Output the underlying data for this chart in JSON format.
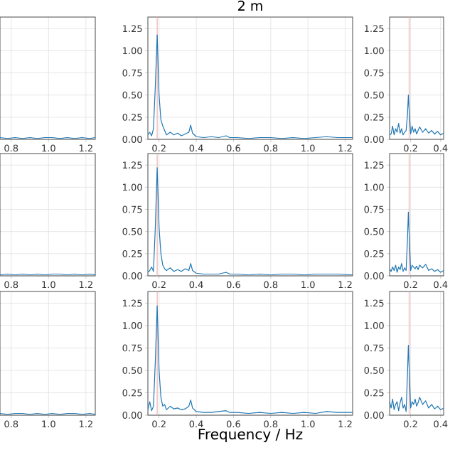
{
  "chart_data": [
    {
      "type": "line",
      "x": [
        0.74,
        0.78,
        0.82,
        0.86,
        0.9,
        0.94,
        0.98,
        1.02,
        1.06,
        1.1,
        1.14,
        1.18,
        1.22,
        1.25
      ],
      "values": [
        0.02,
        0.01,
        0.02,
        0.01,
        0.02,
        0.01,
        0.02,
        0.02,
        0.01,
        0.02,
        0.01,
        0.02,
        0.01,
        0.02
      ],
      "color": "#1f77b4",
      "xlim": [
        0.74,
        1.25
      ],
      "ylim": [
        0,
        1.38
      ],
      "xticks": [
        {
          "value": 0.8,
          "label": "0.8"
        },
        {
          "value": 1.0,
          "label": "1.0"
        },
        {
          "value": 1.2,
          "label": "1.2"
        }
      ],
      "yticks": [
        0,
        0.25,
        0.5,
        0.75,
        1.0,
        1.25
      ],
      "grid": true,
      "tick_labels": "x"
    },
    {
      "type": "line",
      "title": "2 m",
      "x": [
        0.14,
        0.15,
        0.16,
        0.17,
        0.18,
        0.19,
        0.2,
        0.21,
        0.22,
        0.23,
        0.24,
        0.26,
        0.28,
        0.3,
        0.32,
        0.34,
        0.36,
        0.37,
        0.38,
        0.4,
        0.44,
        0.48,
        0.52,
        0.56,
        0.58,
        0.62,
        0.68,
        0.74,
        0.8,
        0.86,
        0.92,
        0.98,
        1.04,
        1.1,
        1.16,
        1.24
      ],
      "values": [
        0.05,
        0.08,
        0.04,
        0.12,
        0.6,
        1.18,
        0.5,
        0.22,
        0.15,
        0.1,
        0.05,
        0.08,
        0.05,
        0.07,
        0.04,
        0.06,
        0.08,
        0.16,
        0.07,
        0.03,
        0.02,
        0.03,
        0.02,
        0.04,
        0.02,
        0.02,
        0.01,
        0.02,
        0.02,
        0.01,
        0.02,
        0.01,
        0.02,
        0.03,
        0.02,
        0.02
      ],
      "color": "#1f77b4",
      "xlim": [
        0.14,
        1.24
      ],
      "ylim": [
        0,
        1.38
      ],
      "xticks": [
        {
          "value": 0.2,
          "label": "0.2"
        },
        {
          "value": 0.4,
          "label": "0.4"
        },
        {
          "value": 0.6,
          "label": "0.6"
        },
        {
          "value": 0.8,
          "label": "0.8"
        },
        {
          "value": 1.0,
          "label": "1.0"
        },
        {
          "value": 1.2,
          "label": "1.2"
        }
      ],
      "yticks": [
        {
          "value": 0,
          "label": "0.00"
        },
        {
          "value": 0.25,
          "label": "0.25"
        },
        {
          "value": 0.5,
          "label": "0.50"
        },
        {
          "value": 0.75,
          "label": "0.75"
        },
        {
          "value": 1.0,
          "label": "1.00"
        },
        {
          "value": 1.25,
          "label": "1.25"
        }
      ],
      "grid": true,
      "ref_lines": [
        {
          "axis": "x",
          "value": 0.19,
          "color": "#f0b0b0"
        }
      ]
    },
    {
      "type": "line",
      "x": [
        0.06,
        0.07,
        0.08,
        0.09,
        0.1,
        0.11,
        0.12,
        0.13,
        0.14,
        0.15,
        0.16,
        0.17,
        0.18,
        0.185,
        0.19,
        0.2,
        0.21,
        0.22,
        0.23,
        0.24,
        0.25,
        0.26,
        0.28,
        0.3,
        0.32,
        0.34,
        0.36,
        0.38,
        0.4,
        0.42
      ],
      "values": [
        0.05,
        0.06,
        0.15,
        0.05,
        0.12,
        0.08,
        0.18,
        0.07,
        0.12,
        0.05,
        0.08,
        0.1,
        0.3,
        0.5,
        0.35,
        0.06,
        0.15,
        0.08,
        0.12,
        0.06,
        0.1,
        0.14,
        0.08,
        0.12,
        0.07,
        0.1,
        0.06,
        0.09,
        0.05,
        0.07
      ],
      "color": "#1f77b4",
      "xlim": [
        0.06,
        0.42
      ],
      "ylim": [
        0,
        1.38
      ],
      "xticks": [
        {
          "value": 0.2,
          "label": "0.2"
        },
        {
          "value": 0.4,
          "label": "0.4"
        }
      ],
      "yticks": [
        {
          "value": 0,
          "label": "0.00"
        },
        {
          "value": 0.25,
          "label": "0.25"
        },
        {
          "value": 0.5,
          "label": "0.50"
        },
        {
          "value": 0.75,
          "label": "0.75"
        },
        {
          "value": 1.0,
          "label": "1.00"
        },
        {
          "value": 1.25,
          "label": "1.25"
        }
      ],
      "grid": true,
      "ref_lines": [
        {
          "axis": "x",
          "value": 0.19,
          "color": "#f0b0b0"
        }
      ]
    },
    {
      "type": "line",
      "x": [
        0.74,
        0.78,
        0.82,
        0.86,
        0.9,
        0.94,
        0.98,
        1.02,
        1.06,
        1.1,
        1.14,
        1.18,
        1.22,
        1.25
      ],
      "values": [
        0.01,
        0.02,
        0.01,
        0.02,
        0.01,
        0.02,
        0.01,
        0.02,
        0.02,
        0.01,
        0.02,
        0.01,
        0.02,
        0.01
      ],
      "color": "#1f77b4",
      "xlim": [
        0.74,
        1.25
      ],
      "ylim": [
        0,
        1.38
      ],
      "xticks": [
        {
          "value": 0.8,
          "label": "0.8"
        },
        {
          "value": 1.0,
          "label": "1.0"
        },
        {
          "value": 1.2,
          "label": "1.2"
        }
      ],
      "yticks": [
        0,
        0.25,
        0.5,
        0.75,
        1.0,
        1.25
      ],
      "grid": true,
      "tick_labels": "x"
    },
    {
      "type": "line",
      "x": [
        0.14,
        0.15,
        0.16,
        0.17,
        0.18,
        0.19,
        0.2,
        0.21,
        0.22,
        0.23,
        0.24,
        0.26,
        0.28,
        0.3,
        0.32,
        0.34,
        0.36,
        0.37,
        0.38,
        0.4,
        0.44,
        0.48,
        0.52,
        0.56,
        0.58,
        0.62,
        0.68,
        0.74,
        0.8,
        0.86,
        0.92,
        0.98,
        1.04,
        1.1,
        1.16,
        1.24
      ],
      "values": [
        0.04,
        0.06,
        0.1,
        0.05,
        0.55,
        1.22,
        0.55,
        0.25,
        0.12,
        0.08,
        0.06,
        0.09,
        0.05,
        0.07,
        0.05,
        0.08,
        0.06,
        0.14,
        0.06,
        0.03,
        0.02,
        0.02,
        0.02,
        0.04,
        0.02,
        0.02,
        0.01,
        0.02,
        0.01,
        0.02,
        0.02,
        0.01,
        0.02,
        0.02,
        0.02,
        0.01
      ],
      "color": "#1f77b4",
      "xlim": [
        0.14,
        1.24
      ],
      "ylim": [
        0,
        1.38
      ],
      "xticks": [
        {
          "value": 0.2,
          "label": "0.2"
        },
        {
          "value": 0.4,
          "label": "0.4"
        },
        {
          "value": 0.6,
          "label": "0.6"
        },
        {
          "value": 0.8,
          "label": "0.8"
        },
        {
          "value": 1.0,
          "label": "1.0"
        },
        {
          "value": 1.2,
          "label": "1.2"
        }
      ],
      "yticks": [
        {
          "value": 0,
          "label": "0.00"
        },
        {
          "value": 0.25,
          "label": "0.25"
        },
        {
          "value": 0.5,
          "label": "0.50"
        },
        {
          "value": 0.75,
          "label": "0.75"
        },
        {
          "value": 1.0,
          "label": "1.00"
        },
        {
          "value": 1.25,
          "label": "1.25"
        }
      ],
      "grid": true,
      "ref_lines": [
        {
          "axis": "x",
          "value": 0.19,
          "color": "#f0b0b0"
        }
      ]
    },
    {
      "type": "line",
      "x": [
        0.06,
        0.07,
        0.08,
        0.09,
        0.1,
        0.11,
        0.12,
        0.13,
        0.14,
        0.15,
        0.16,
        0.17,
        0.18,
        0.185,
        0.19,
        0.2,
        0.21,
        0.22,
        0.23,
        0.24,
        0.25,
        0.26,
        0.28,
        0.3,
        0.32,
        0.34,
        0.36,
        0.38,
        0.4,
        0.42
      ],
      "values": [
        0.08,
        0.05,
        0.1,
        0.06,
        0.12,
        0.04,
        0.1,
        0.07,
        0.14,
        0.05,
        0.09,
        0.06,
        0.45,
        0.72,
        0.5,
        0.06,
        0.12,
        0.1,
        0.08,
        0.11,
        0.07,
        0.12,
        0.09,
        0.13,
        0.06,
        0.08,
        0.05,
        0.07,
        0.04,
        0.06
      ],
      "color": "#1f77b4",
      "xlim": [
        0.06,
        0.42
      ],
      "ylim": [
        0,
        1.38
      ],
      "xticks": [
        {
          "value": 0.2,
          "label": "0.2"
        },
        {
          "value": 0.4,
          "label": "0.4"
        }
      ],
      "yticks": [
        {
          "value": 0,
          "label": "0.00"
        },
        {
          "value": 0.25,
          "label": "0.25"
        },
        {
          "value": 0.5,
          "label": "0.50"
        },
        {
          "value": 0.75,
          "label": "0.75"
        },
        {
          "value": 1.0,
          "label": "1.00"
        },
        {
          "value": 1.25,
          "label": "1.25"
        }
      ],
      "grid": true,
      "ref_lines": [
        {
          "axis": "x",
          "value": 0.19,
          "color": "#f0b0b0"
        }
      ]
    },
    {
      "type": "line",
      "x": [
        0.74,
        0.78,
        0.82,
        0.86,
        0.9,
        0.94,
        0.98,
        1.02,
        1.06,
        1.1,
        1.14,
        1.18,
        1.22,
        1.25
      ],
      "values": [
        0.02,
        0.01,
        0.02,
        0.02,
        0.01,
        0.02,
        0.01,
        0.02,
        0.01,
        0.02,
        0.02,
        0.01,
        0.02,
        0.01
      ],
      "color": "#1f77b4",
      "xlim": [
        0.74,
        1.25
      ],
      "ylim": [
        0,
        1.38
      ],
      "xticks": [
        {
          "value": 0.8,
          "label": "0.8"
        },
        {
          "value": 1.0,
          "label": "1.0"
        },
        {
          "value": 1.2,
          "label": "1.2"
        }
      ],
      "yticks": [
        0,
        0.25,
        0.5,
        0.75,
        1.0,
        1.25
      ],
      "grid": true,
      "tick_labels": "x"
    },
    {
      "type": "line",
      "xlabel": "Frequency / Hz",
      "x": [
        0.14,
        0.15,
        0.16,
        0.17,
        0.18,
        0.19,
        0.2,
        0.21,
        0.22,
        0.23,
        0.24,
        0.26,
        0.28,
        0.3,
        0.32,
        0.34,
        0.36,
        0.37,
        0.38,
        0.4,
        0.44,
        0.48,
        0.52,
        0.56,
        0.58,
        0.62,
        0.68,
        0.74,
        0.8,
        0.86,
        0.92,
        0.98,
        1.04,
        1.1,
        1.16,
        1.24
      ],
      "values": [
        0.06,
        0.15,
        0.05,
        0.1,
        0.6,
        1.22,
        0.5,
        0.2,
        0.1,
        0.12,
        0.06,
        0.1,
        0.07,
        0.08,
        0.06,
        0.07,
        0.1,
        0.17,
        0.08,
        0.04,
        0.03,
        0.03,
        0.04,
        0.05,
        0.03,
        0.03,
        0.02,
        0.03,
        0.02,
        0.03,
        0.02,
        0.03,
        0.02,
        0.04,
        0.03,
        0.03
      ],
      "color": "#1f77b4",
      "xlim": [
        0.14,
        1.24
      ],
      "ylim": [
        0,
        1.38
      ],
      "xticks": [
        {
          "value": 0.2,
          "label": "0.2"
        },
        {
          "value": 0.4,
          "label": "0.4"
        },
        {
          "value": 0.6,
          "label": "0.6"
        },
        {
          "value": 0.8,
          "label": "0.8"
        },
        {
          "value": 1.0,
          "label": "1.0"
        },
        {
          "value": 1.2,
          "label": "1.2"
        }
      ],
      "yticks": [
        {
          "value": 0,
          "label": "0.00"
        },
        {
          "value": 0.25,
          "label": "0.25"
        },
        {
          "value": 0.5,
          "label": "0.50"
        },
        {
          "value": 0.75,
          "label": "0.75"
        },
        {
          "value": 1.0,
          "label": "1.00"
        },
        {
          "value": 1.25,
          "label": "1.25"
        }
      ],
      "grid": true,
      "ref_lines": [
        {
          "axis": "x",
          "value": 0.19,
          "color": "#f0b0b0"
        }
      ]
    },
    {
      "type": "line",
      "x": [
        0.06,
        0.07,
        0.08,
        0.09,
        0.1,
        0.11,
        0.12,
        0.13,
        0.14,
        0.15,
        0.16,
        0.17,
        0.18,
        0.185,
        0.19,
        0.2,
        0.21,
        0.22,
        0.23,
        0.24,
        0.25,
        0.26,
        0.28,
        0.3,
        0.32,
        0.34,
        0.36,
        0.38,
        0.4,
        0.42
      ],
      "values": [
        0.15,
        0.08,
        0.18,
        0.06,
        0.12,
        0.15,
        0.05,
        0.14,
        0.2,
        0.08,
        0.12,
        0.04,
        0.5,
        0.78,
        0.55,
        0.08,
        0.15,
        0.12,
        0.18,
        0.1,
        0.14,
        0.2,
        0.12,
        0.16,
        0.08,
        0.12,
        0.07,
        0.1,
        0.06,
        0.08
      ],
      "color": "#1f77b4",
      "xlim": [
        0.06,
        0.42
      ],
      "ylim": [
        0,
        1.38
      ],
      "xticks": [
        {
          "value": 0.2,
          "label": "0.2"
        },
        {
          "value": 0.4,
          "label": "0.4"
        }
      ],
      "yticks": [
        {
          "value": 0,
          "label": "0.00"
        },
        {
          "value": 0.25,
          "label": "0.25"
        },
        {
          "value": 0.5,
          "label": "0.50"
        },
        {
          "value": 0.75,
          "label": "0.75"
        },
        {
          "value": 1.0,
          "label": "1.00"
        },
        {
          "value": 1.25,
          "label": "1.25"
        }
      ],
      "grid": true,
      "ref_lines": [
        {
          "axis": "x",
          "value": 0.19,
          "color": "#f0b0b0"
        }
      ]
    }
  ]
}
